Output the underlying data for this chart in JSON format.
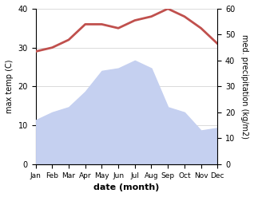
{
  "months": [
    "Jan",
    "Feb",
    "Mar",
    "Apr",
    "May",
    "Jun",
    "Jul",
    "Aug",
    "Sep",
    "Oct",
    "Nov",
    "Dec"
  ],
  "month_indices": [
    1,
    2,
    3,
    4,
    5,
    6,
    7,
    8,
    9,
    10,
    11,
    12
  ],
  "temperature": [
    29,
    30,
    32,
    36,
    36,
    35,
    37,
    38,
    40,
    38,
    35,
    31
  ],
  "precipitation": [
    17,
    20,
    22,
    28,
    36,
    37,
    40,
    37,
    22,
    20,
    13,
    14
  ],
  "temp_color": "#c0504d",
  "precip_fill_color": "#c5d0f0",
  "temp_ylim": [
    0,
    40
  ],
  "precip_ylim": [
    0,
    60
  ],
  "temp_yticks": [
    0,
    10,
    20,
    30,
    40
  ],
  "precip_yticks": [
    0,
    10,
    20,
    30,
    40,
    50,
    60
  ],
  "ylabel_left": "max temp (C)",
  "ylabel_right": "med. precipitation (kg/m2)",
  "xlabel": "date (month)",
  "background_color": "#ffffff",
  "linewidth": 2.0,
  "grid_color": "#cccccc"
}
